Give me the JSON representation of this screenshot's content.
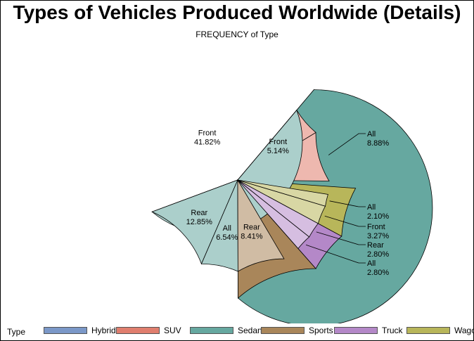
{
  "chart_data": {
    "type": "pie",
    "title": "Types of Vehicles Produced Worldwide (Details)",
    "subtitle": "FREQUENCY of Type",
    "outer_ring": [
      {
        "name": "Hybrid",
        "percent": 0.93,
        "color": "#7b98c8"
      },
      {
        "name": "SUV",
        "percent": 14.02,
        "color": "#e07e6e"
      },
      {
        "name": "Sedan",
        "percent": 61.21,
        "color": "#66a8a0"
      },
      {
        "name": "Sports",
        "percent": 11.45,
        "color": "#a9865a"
      },
      {
        "name": "Truck",
        "percent": 5.61,
        "color": "#b488c8"
      },
      {
        "name": "Wagon",
        "percent": 6.78,
        "color": "#b8b65a"
      }
    ],
    "inner_ring": [
      {
        "parent": "Hybrid",
        "label": "",
        "value": "",
        "percent": 0.93
      },
      {
        "parent": "SUV",
        "label": "All",
        "value": "8.88%",
        "percent": 8.88,
        "callout": true
      },
      {
        "parent": "SUV",
        "label": "Front",
        "value": "5.14%",
        "percent": 5.14
      },
      {
        "parent": "Sedan",
        "label": "Front",
        "value": "41.82%",
        "percent": 41.82
      },
      {
        "parent": "Sedan",
        "label": "Rear",
        "value": "12.85%",
        "percent": 12.85
      },
      {
        "parent": "Sedan",
        "label": "All",
        "value": "6.54%",
        "percent": 6.54
      },
      {
        "parent": "Sports",
        "label": "Rear",
        "value": "8.41%",
        "percent": 8.41
      },
      {
        "parent": "Sports",
        "label": "",
        "value": "",
        "percent": 3.04
      },
      {
        "parent": "Truck",
        "label": "All",
        "value": "2.80%",
        "percent": 2.8,
        "callout": true
      },
      {
        "parent": "Truck",
        "label": "Rear",
        "value": "2.80%",
        "percent": 2.81,
        "callout": true
      },
      {
        "parent": "Wagon",
        "label": "Front",
        "value": "3.27%",
        "percent": 3.27,
        "callout": true
      },
      {
        "parent": "Wagon",
        "label": "All",
        "value": "2.10%",
        "percent": 2.1,
        "callout": true
      },
      {
        "parent": "Wagon",
        "label": "",
        "value": "",
        "percent": 1.41
      }
    ],
    "legend": {
      "title": "Type",
      "placement": "bottom",
      "items": [
        "Hybrid",
        "SUV",
        "Sedan",
        "Sports",
        "Truck",
        "Wagon"
      ]
    }
  }
}
